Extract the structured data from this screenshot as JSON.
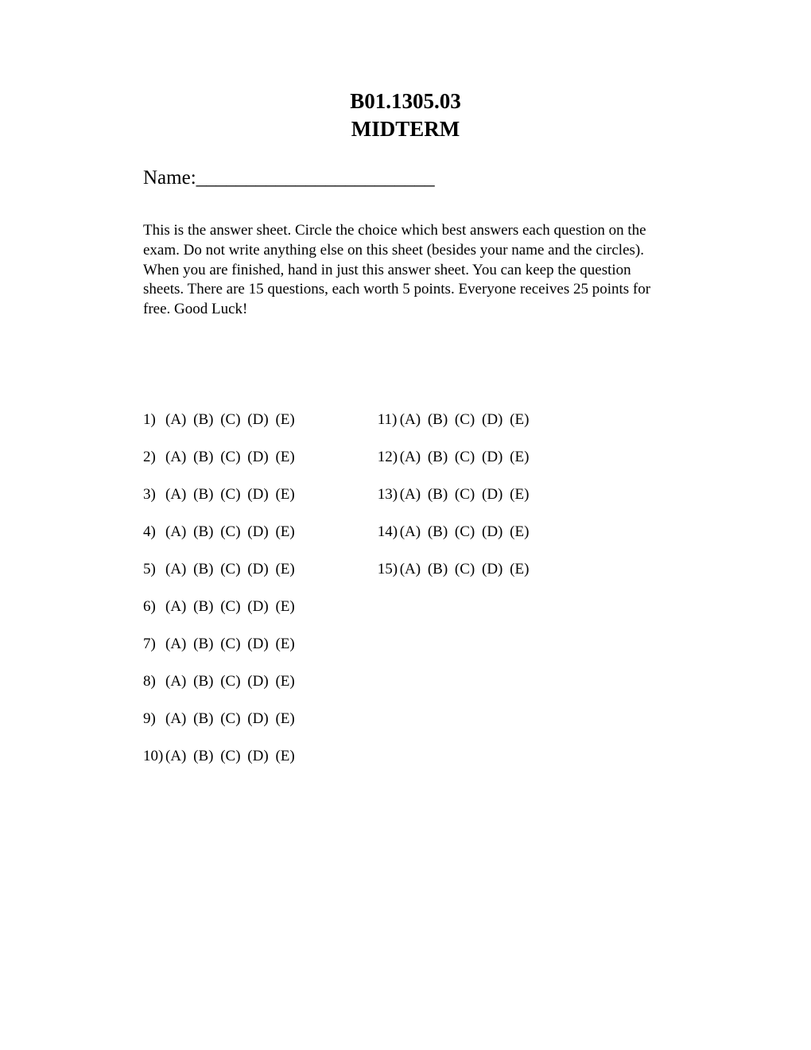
{
  "header": {
    "course_code": "B01.1305.03",
    "exam_title": "MIDTERM"
  },
  "name": {
    "label": "Name:",
    "blank": "________________________"
  },
  "instructions": "This is the answer sheet. Circle the choice which best answers each question on the exam. Do not write anything else on this sheet (besides your name and the circles). When you are finished, hand in just this answer sheet. You can keep the question sheets. There are 15 questions, each worth 5 points. Everyone receives 25 points for free. Good Luck!",
  "answer_sheet": {
    "choices": [
      "(A)",
      "(B)",
      "(C)",
      "(D)",
      "(E)"
    ],
    "left_column": [
      "1)",
      "2)",
      "3)",
      "4)",
      "5)",
      "6)",
      "7)",
      "8)",
      "9)",
      "10)"
    ],
    "right_column": [
      "11)",
      "12)",
      "13)",
      "14)",
      "15)"
    ]
  },
  "style": {
    "font_family": "Times New Roman",
    "text_color": "#000000",
    "background_color": "#ffffff",
    "header_fontsize": 27,
    "name_fontsize": 25,
    "body_fontsize": 19
  }
}
